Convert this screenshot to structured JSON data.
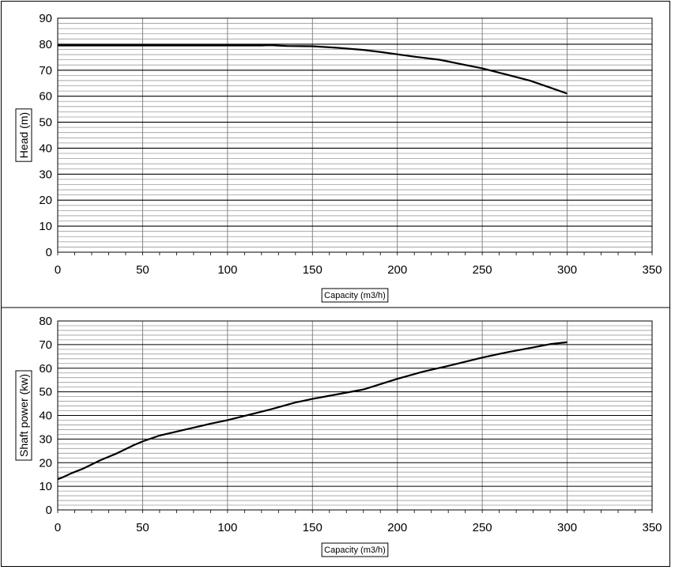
{
  "chart_data": [
    {
      "type": "line",
      "xlabel": "Capacity (m3/h)",
      "ylabel": "Head (m)",
      "xlim": [
        0,
        350
      ],
      "ylim": [
        0,
        90
      ],
      "x_ticks": [
        "0",
        "50",
        "100",
        "150",
        "200",
        "250",
        "300",
        "350"
      ],
      "y_ticks": [
        "0",
        "10",
        "20",
        "30",
        "40",
        "50",
        "60",
        "70",
        "80",
        "90"
      ],
      "grid": true,
      "series": [
        {
          "x": [
            0,
            50,
            100,
            120,
            125,
            135,
            150,
            165,
            180,
            190,
            200,
            210,
            225,
            240,
            250,
            265,
            278,
            290,
            300
          ],
          "values": [
            79.5,
            79.5,
            79.5,
            79.5,
            79.6,
            79.3,
            79.2,
            78.6,
            77.8,
            77.0,
            76.1,
            75.2,
            74.0,
            72.0,
            70.7,
            68.2,
            66.0,
            63.3,
            61.0
          ]
        }
      ]
    },
    {
      "type": "line",
      "xlabel": "Capacity (m3/h)",
      "ylabel": "Shaft power (kw)",
      "xlim": [
        0,
        350
      ],
      "ylim": [
        0,
        80
      ],
      "x_ticks": [
        "0",
        "50",
        "100",
        "150",
        "200",
        "250",
        "300",
        "350"
      ],
      "y_ticks": [
        "0",
        "10",
        "20",
        "30",
        "40",
        "50",
        "60",
        "70",
        "80"
      ],
      "grid": true,
      "series": [
        {
          "x": [
            0,
            3,
            8,
            15,
            25,
            35,
            45,
            50,
            60,
            75,
            90,
            100,
            125,
            140,
            150,
            165,
            180,
            200,
            215,
            230,
            250,
            265,
            280,
            290,
            300
          ],
          "values": [
            13,
            13.8,
            15.5,
            17.5,
            21,
            24,
            27.5,
            29,
            31.5,
            34,
            36.5,
            38,
            42.5,
            45.5,
            47,
            49,
            51,
            55.5,
            58.5,
            61,
            64.5,
            66.8,
            68.8,
            70.2,
            71
          ]
        }
      ]
    }
  ]
}
